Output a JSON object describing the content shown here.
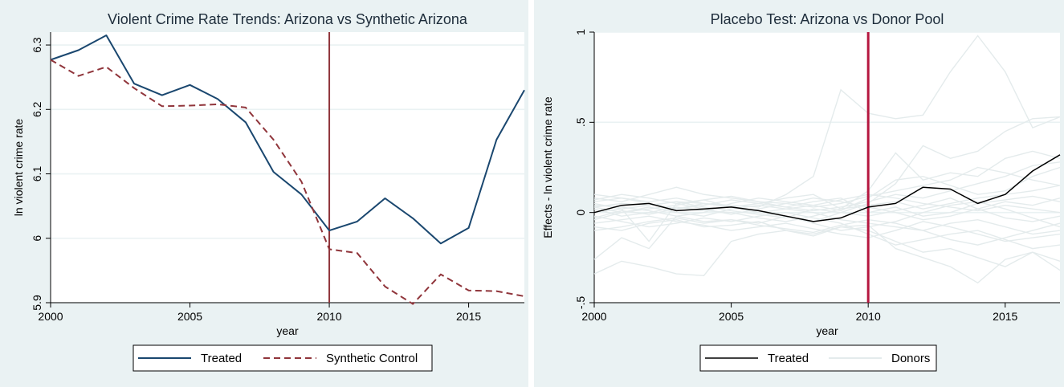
{
  "chart_data": [
    {
      "type": "line",
      "title": "Violent Crime Rate Trends: Arizona vs Synthetic Arizona",
      "xlabel": "year",
      "ylabel": "ln violent crime rate",
      "xlim": [
        2000,
        2017
      ],
      "ylim": [
        5.9,
        6.32
      ],
      "xticks": [
        "2000",
        "2005",
        "2010",
        "2015"
      ],
      "yticks": [
        "5.9",
        "6",
        "6.1",
        "6.2",
        "6.3"
      ],
      "grid": true,
      "intervention_year": 2010,
      "legend_position": "bottom",
      "x": [
        2000,
        2001,
        2002,
        2003,
        2004,
        2005,
        2006,
        2007,
        2008,
        2009,
        2010,
        2011,
        2012,
        2013,
        2014,
        2015,
        2016,
        2017
      ],
      "series": [
        {
          "name": "Treated",
          "color": "#1a476f",
          "dash": "solid",
          "values": [
            6.277,
            6.292,
            6.315,
            6.24,
            6.222,
            6.238,
            6.216,
            6.18,
            6.103,
            6.068,
            6.012,
            6.026,
            6.062,
            6.031,
            5.992,
            6.016,
            6.153,
            6.23
          ]
        },
        {
          "name": "Synthetic Control",
          "color": "#90353b",
          "dash": "dashed",
          "values": [
            6.277,
            6.252,
            6.266,
            6.233,
            6.205,
            6.206,
            6.208,
            6.203,
            6.153,
            6.088,
            5.983,
            5.977,
            5.925,
            5.898,
            5.944,
            5.919,
            5.918,
            5.91
          ]
        }
      ]
    },
    {
      "type": "line",
      "title": "Placebo Test: Arizona vs Donor Pool",
      "xlabel": "year",
      "ylabel": "Effects - ln violent crime rate",
      "xlim": [
        2000,
        2017
      ],
      "ylim": [
        -0.5,
        1.0
      ],
      "xticks": [
        "2000",
        "2005",
        "2010",
        "2015"
      ],
      "yticks": [
        "-.5",
        "0",
        ".5",
        "1"
      ],
      "grid": true,
      "intervention_year": 2010,
      "legend_position": "bottom",
      "x": [
        2000,
        2001,
        2002,
        2003,
        2004,
        2005,
        2006,
        2007,
        2008,
        2009,
        2010,
        2011,
        2012,
        2013,
        2014,
        2015,
        2016,
        2017
      ],
      "series": [
        {
          "name": "Treated",
          "color": "#000000",
          "values": [
            0.0,
            0.04,
            0.05,
            0.01,
            0.02,
            0.03,
            0.01,
            -0.02,
            -0.05,
            -0.03,
            0.03,
            0.05,
            0.14,
            0.13,
            0.05,
            0.1,
            0.23,
            0.32
          ]
        },
        {
          "name": "Donors",
          "color": "#e4ebec",
          "lines": [
            [
              0.03,
              0.05,
              0.04,
              0.06,
              0.05,
              0.04,
              0.03,
              0.1,
              0.2,
              0.68,
              0.55,
              0.52,
              0.54,
              0.78,
              0.98,
              0.78,
              0.47,
              0.53
            ],
            [
              -0.26,
              -0.14,
              -0.2,
              -0.02,
              -0.05,
              -0.04,
              -0.06,
              -0.02,
              -0.05,
              0.0,
              0.05,
              0.16,
              0.37,
              0.3,
              0.34,
              0.45,
              0.52,
              0.53
            ],
            [
              -0.34,
              -0.27,
              -0.3,
              -0.34,
              -0.35,
              -0.16,
              -0.12,
              -0.1,
              -0.12,
              -0.08,
              -0.07,
              -0.2,
              -0.25,
              -0.3,
              -0.39,
              -0.26,
              -0.22,
              -0.32
            ],
            [
              0.05,
              0.02,
              -0.16,
              0.05,
              0.07,
              0.03,
              0.05,
              0.08,
              0.1,
              0.02,
              0.12,
              0.33,
              0.18,
              0.22,
              0.2,
              0.3,
              0.34,
              0.3
            ],
            [
              0.08,
              0.06,
              0.1,
              0.14,
              0.1,
              0.08,
              0.06,
              0.05,
              0.03,
              0.05,
              0.09,
              0.12,
              0.15,
              0.18,
              0.25,
              0.22,
              0.18,
              0.15
            ],
            [
              -0.08,
              -0.1,
              -0.06,
              -0.04,
              -0.08,
              -0.07,
              -0.05,
              -0.1,
              -0.13,
              -0.08,
              -0.1,
              -0.16,
              -0.22,
              -0.2,
              -0.25,
              -0.3,
              -0.22,
              -0.27
            ],
            [
              0.02,
              -0.02,
              0.0,
              0.03,
              0.01,
              0.0,
              -0.03,
              -0.05,
              -0.02,
              0.02,
              0.04,
              0.06,
              0.02,
              0.05,
              0.08,
              0.1,
              0.12,
              0.15
            ],
            [
              -0.04,
              0.0,
              0.03,
              0.0,
              -0.02,
              0.02,
              0.04,
              0.02,
              0.0,
              -0.04,
              -0.06,
              -0.08,
              -0.1,
              -0.06,
              -0.04,
              -0.08,
              -0.12,
              -0.1
            ],
            [
              0.06,
              0.08,
              0.05,
              0.02,
              0.04,
              0.07,
              0.05,
              0.03,
              0.06,
              0.08,
              0.0,
              0.03,
              -0.02,
              0.0,
              0.05,
              0.07,
              0.09,
              0.06
            ],
            [
              -0.02,
              -0.05,
              -0.08,
              -0.06,
              -0.03,
              -0.05,
              -0.02,
              0.0,
              -0.03,
              -0.06,
              -0.12,
              -0.18,
              -0.15,
              -0.12,
              -0.1,
              -0.15,
              -0.2,
              -0.18
            ],
            [
              0.1,
              0.08,
              0.06,
              0.08,
              0.05,
              0.03,
              0.0,
              0.02,
              0.04,
              0.01,
              0.08,
              0.18,
              0.2,
              0.15,
              0.1,
              0.12,
              0.2,
              0.25
            ],
            [
              -0.06,
              -0.04,
              -0.02,
              -0.05,
              -0.07,
              -0.1,
              -0.08,
              -0.06,
              -0.09,
              -0.12,
              -0.14,
              -0.1,
              -0.05,
              -0.08,
              -0.12,
              -0.16,
              -0.14,
              -0.12
            ],
            [
              0.0,
              0.02,
              0.04,
              0.06,
              0.03,
              0.01,
              -0.01,
              -0.03,
              0.02,
              0.0,
              -0.02,
              0.01,
              0.04,
              0.08,
              0.02,
              -0.03,
              -0.05,
              -0.02
            ],
            [
              0.04,
              0.03,
              0.01,
              -0.02,
              0.0,
              0.05,
              0.08,
              0.06,
              0.04,
              0.07,
              0.1,
              0.08,
              0.05,
              0.03,
              0.01,
              0.04,
              0.02,
              0.0
            ],
            [
              -0.1,
              -0.08,
              -0.05,
              -0.03,
              -0.06,
              -0.04,
              -0.07,
              -0.09,
              -0.11,
              -0.07,
              -0.04,
              -0.06,
              -0.1,
              -0.15,
              -0.18,
              -0.14,
              -0.1,
              -0.06
            ],
            [
              0.07,
              0.1,
              0.08,
              0.05,
              0.02,
              -0.01,
              0.02,
              0.05,
              0.08,
              0.06,
              0.03,
              0.0,
              -0.04,
              -0.02,
              0.02,
              0.06,
              0.04,
              0.08
            ],
            [
              -0.03,
              0.01,
              -0.01,
              0.02,
              0.05,
              0.03,
              0.0,
              -0.02,
              -0.06,
              -0.1,
              -0.08,
              -0.05,
              0.0,
              0.04,
              0.06,
              0.02,
              -0.03,
              -0.08
            ],
            [
              0.03,
              0.0,
              0.02,
              0.04,
              0.07,
              0.09,
              0.06,
              0.03,
              0.01,
              0.03,
              0.06,
              0.1,
              0.08,
              0.12,
              0.16,
              0.2,
              0.26,
              0.28
            ]
          ]
        }
      ]
    }
  ]
}
